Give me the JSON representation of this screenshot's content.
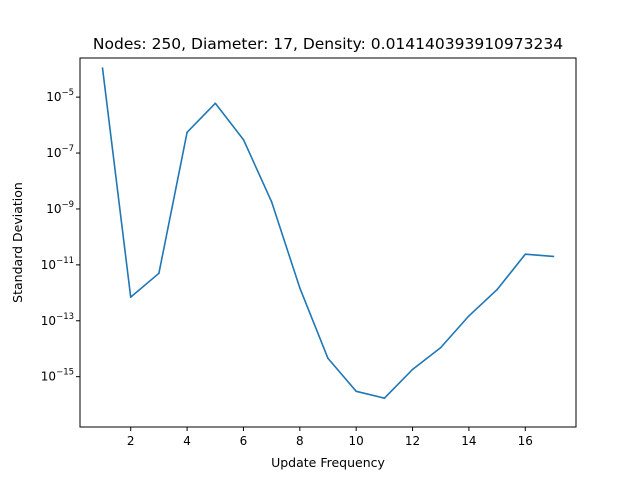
{
  "chart_data": {
    "type": "line",
    "title": "Nodes: 250, Diameter: 17, Density: 0.014140393910973234",
    "xlabel": "Update Frequency",
    "ylabel": "Standard Deviation",
    "y_scale": "log",
    "xlim": [
      0.2,
      17.8
    ],
    "ylim_exponent": [
      -16.8,
      -3.6
    ],
    "x_ticks": [
      2,
      4,
      6,
      8,
      10,
      12,
      14,
      16
    ],
    "y_tick_exponents": [
      -15,
      -13,
      -11,
      -9,
      -7,
      -5
    ],
    "y_tick_base": "10",
    "grid": false,
    "series": [
      {
        "color": "#1f77b4",
        "x": [
          1,
          2,
          3,
          4,
          5,
          6,
          7,
          8,
          9,
          10,
          11,
          12,
          13,
          14,
          15,
          16,
          17
        ],
        "y": [
          0.00011,
          7e-13,
          5e-12,
          5.5e-07,
          6e-06,
          3e-07,
          1.8e-09,
          1.5e-12,
          4.5e-15,
          3e-16,
          1.7e-16,
          1.8e-15,
          1.1e-14,
          1.5e-13,
          1.3e-12,
          2.4e-11,
          2e-11
        ]
      }
    ]
  }
}
